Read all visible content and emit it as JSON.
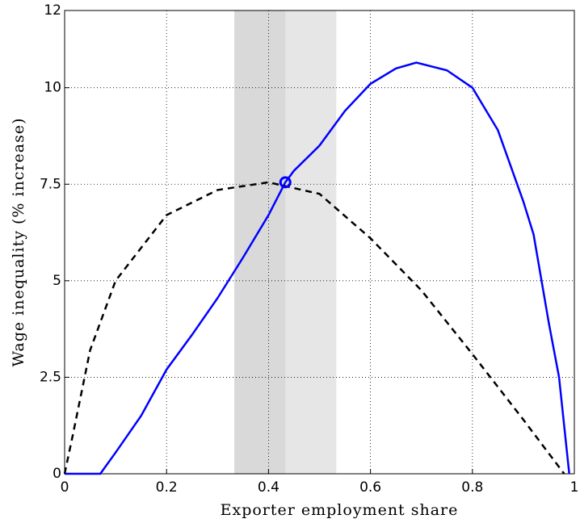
{
  "chart_data": {
    "type": "line",
    "xlabel": "Exporter employment share",
    "ylabel": "Wage inequality (% increase)",
    "xlim": [
      0,
      1
    ],
    "ylim": [
      0,
      12
    ],
    "xticks": [
      0,
      0.2,
      0.4,
      0.6,
      0.8,
      1
    ],
    "yticks": [
      0,
      2.5,
      5,
      7.5,
      10,
      12
    ],
    "grid": true,
    "shaded_regions": [
      {
        "x": [
          0.333,
          0.533
        ],
        "color": "#e6e6e6"
      },
      {
        "x": [
          0.333,
          0.433
        ],
        "color": "#d9d9d9"
      }
    ],
    "series": [
      {
        "color": "#0000ff",
        "line_style": "solid",
        "x": [
          0,
          0.07,
          0.1,
          0.15,
          0.2,
          0.25,
          0.3,
          0.35,
          0.4,
          0.433,
          0.45,
          0.5,
          0.55,
          0.6,
          0.65,
          0.69,
          0.75,
          0.8,
          0.85,
          0.9,
          0.92,
          0.95,
          0.97,
          0.99
        ],
        "values": [
          0,
          0,
          0.55,
          1.5,
          2.7,
          3.6,
          4.55,
          5.6,
          6.7,
          7.55,
          7.85,
          8.5,
          9.4,
          10.1,
          10.5,
          10.65,
          10.45,
          10.0,
          8.9,
          7.05,
          6.2,
          3.9,
          2.5,
          0
        ]
      },
      {
        "color": "#000000",
        "line_style": "dashed",
        "x": [
          0,
          0.016,
          0.05,
          0.1,
          0.2,
          0.3,
          0.4,
          0.5,
          0.6,
          0.7,
          0.8,
          0.9,
          0.98
        ],
        "values": [
          0,
          1.0,
          3.2,
          5.0,
          6.7,
          7.35,
          7.55,
          7.25,
          6.1,
          4.75,
          3.1,
          1.4,
          0
        ]
      }
    ],
    "marker": {
      "x": 0.433,
      "y": 7.55,
      "color": "#0000ff"
    }
  }
}
